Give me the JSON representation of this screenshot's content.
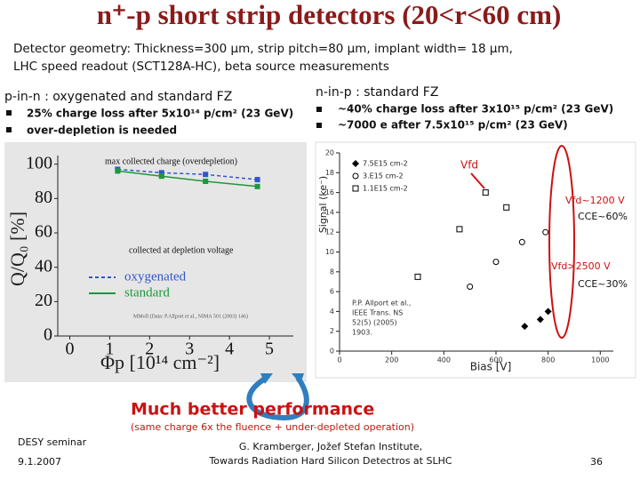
{
  "header": {
    "title": "n⁺-p short strip detectors (20<r<60 cm)",
    "subtitle": [
      "Detector geometry: Thickness=300 µm, strip pitch=80 µm, implant width= 18 µm,",
      "LHC speed readout (SCT128A-HC), beta source measurements"
    ]
  },
  "left": {
    "heading": "p-in-n : oxygenated and standard FZ",
    "bullets": [
      "25% charge loss after 5x10¹⁴ p/cm² (23 GeV)",
      "over-depletion is needed"
    ]
  },
  "right": {
    "heading": "n-in-p : standard FZ",
    "bullets": [
      "~40% charge loss after 3x10¹⁵ p/cm² (23 GeV)",
      "~7000 e after 7.5x10¹⁵ p/cm² (23 GeV)"
    ]
  },
  "chart_data": [
    {
      "type": "line",
      "x_label": "Φp [10¹⁴ cm⁻²]",
      "y_label": "Q/Q₀ [%]",
      "x": [
        1.2,
        2.3,
        3.4,
        4.7
      ],
      "series": [
        {
          "name": "oxygenated",
          "color": "#3355cc",
          "values": [
            97,
            95,
            94,
            91
          ]
        },
        {
          "name": "standard",
          "color": "#1a9a3a",
          "values": [
            96,
            93,
            90,
            87
          ]
        }
      ],
      "xlim": [
        -0.3,
        5.6
      ],
      "xticks": [
        0,
        1,
        2,
        3,
        4,
        5
      ],
      "ylim": [
        0,
        105
      ],
      "yticks": [
        0,
        20,
        40,
        60,
        80,
        100
      ],
      "annotations": [
        "max collected charge (overdepletion)",
        "collected at depletion voltage",
        "MMoll (Data: P.Allport et al., NIMA 501 (2003) 146)"
      ]
    },
    {
      "type": "scatter",
      "x_label": "Bias [V]",
      "y_label": "Signal (ke⁻)",
      "series": [
        {
          "name": "7.5E15 cm-2",
          "color": "#000000",
          "marker": "diamond",
          "x": [
            710,
            770,
            800
          ],
          "values": [
            2.5,
            3.2,
            4
          ]
        },
        {
          "name": "3.E15 cm-2",
          "color": "#000000",
          "marker": "circle",
          "x": [
            500,
            600,
            700,
            790
          ],
          "values": [
            6.5,
            9,
            11,
            12
          ]
        },
        {
          "name": "1.1E15 cm-2",
          "color": "#000000",
          "marker": "square",
          "x": [
            300,
            460,
            560,
            640
          ],
          "values": [
            7.5,
            12.3,
            16,
            14.5
          ]
        }
      ],
      "xlim": [
        0,
        1050
      ],
      "xticks": [
        0,
        200,
        400,
        600,
        800,
        1000
      ],
      "ylim": [
        0,
        20
      ],
      "yticks": [
        0,
        2,
        4,
        6,
        8,
        10,
        12,
        14,
        16,
        18,
        20
      ],
      "annotations": [
        "Vfd",
        "Vfd~1200 V",
        "CCE~60%",
        "Vfd>2500 V",
        "CCE~30%",
        "P.P. Allport et al.,",
        "IEEE Trans. NS",
        "52(5) (2005)",
        "1903."
      ]
    }
  ],
  "conclusion": {
    "title": "Much better performance",
    "note": "(same charge 6x the fluence + under-depleted operation)"
  },
  "footer": {
    "event": "DESY seminar",
    "date": "9.1.2007",
    "author": "G. Kramberger, Jožef Stefan Institute,",
    "talk": "Towards Radiation Hard Silicon Detectros at SLHC",
    "page": "36"
  }
}
